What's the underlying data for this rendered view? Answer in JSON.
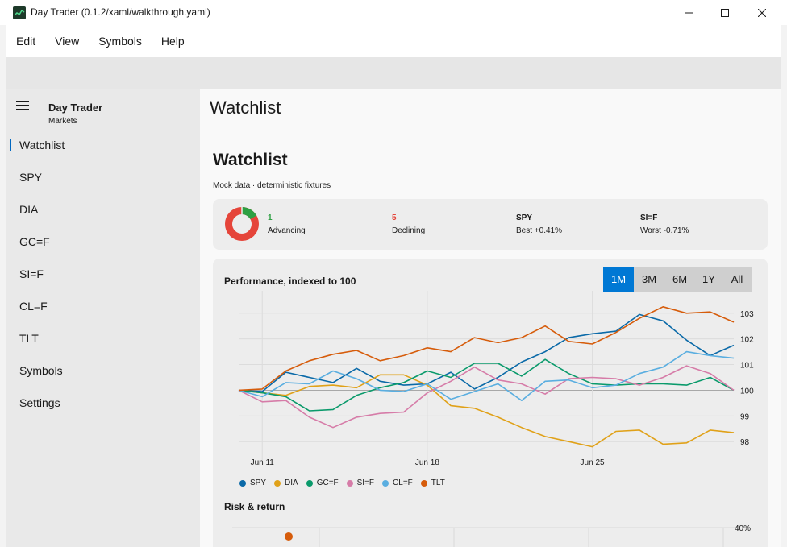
{
  "window": {
    "title": "Day Trader (0.1.2/xaml/walkthrough.yaml)"
  },
  "menu": [
    "Edit",
    "View",
    "Symbols",
    "Help"
  ],
  "sidebar": {
    "app_name": "Day Trader",
    "app_sub": "Markets",
    "items": [
      {
        "label": "Watchlist",
        "active": true
      },
      {
        "label": "SPY"
      },
      {
        "label": "DIA"
      },
      {
        "label": "GC=F"
      },
      {
        "label": "SI=F"
      },
      {
        "label": "CL=F"
      },
      {
        "label": "TLT"
      },
      {
        "label": "Symbols"
      },
      {
        "label": "Settings"
      }
    ]
  },
  "main": {
    "header": "Watchlist",
    "title": "Watchlist",
    "subtitle": "Mock data · deterministic fixtures",
    "stats": {
      "advancing": {
        "value": "1",
        "label": "Advancing",
        "color": "#2ea043"
      },
      "declining": {
        "value": "5",
        "label": "Declining",
        "color": "#e5453a"
      },
      "best": {
        "value": "SPY",
        "label": "Best +0.41%"
      },
      "worst": {
        "value": "SI=F",
        "label": "Worst -0.71%"
      }
    },
    "performance": {
      "title": "Performance, indexed to 100",
      "ranges": [
        "1M",
        "3M",
        "6M",
        "1Y",
        "All"
      ],
      "active_range": "1M"
    },
    "risk_return": {
      "title": "Risk & return",
      "y_label": "40%"
    }
  },
  "chart_data": {
    "type": "line",
    "title": "Performance, indexed to 100",
    "x_ticks": [
      "Jun 11",
      "Jun 18",
      "Jun 25"
    ],
    "y_ticks": [
      98,
      99,
      100,
      101,
      102,
      103
    ],
    "ylim": [
      97.6,
      103.4
    ],
    "x_count": 22,
    "series": [
      {
        "name": "SPY",
        "color": "#0b6aa8",
        "values": [
          100,
          99.95,
          100.7,
          100.5,
          100.3,
          100.85,
          100.35,
          100.2,
          100.25,
          100.7,
          100.05,
          100.5,
          101.1,
          101.5,
          102.05,
          102.2,
          102.3,
          102.95,
          102.7,
          101.95,
          101.35,
          101.75
        ]
      },
      {
        "name": "DIA",
        "color": "#e0a118",
        "values": [
          100,
          99.9,
          99.8,
          100.15,
          100.2,
          100.1,
          100.6,
          100.6,
          100.2,
          99.4,
          99.3,
          98.95,
          98.55,
          98.2,
          98.0,
          97.8,
          98.4,
          98.45,
          97.9,
          97.95,
          98.45,
          98.35
        ]
      },
      {
        "name": "GC=F",
        "color": "#0a9a6b",
        "values": [
          100,
          99.9,
          99.75,
          99.2,
          99.25,
          99.8,
          100.1,
          100.3,
          100.75,
          100.5,
          101.05,
          101.05,
          100.55,
          101.2,
          100.65,
          100.25,
          100.2,
          100.25,
          100.25,
          100.2,
          100.5,
          100.0
        ]
      },
      {
        "name": "SI=F",
        "color": "#d67ca8",
        "values": [
          100,
          99.55,
          99.6,
          98.95,
          98.55,
          98.95,
          99.1,
          99.15,
          99.9,
          100.35,
          100.9,
          100.4,
          100.25,
          99.85,
          100.45,
          100.5,
          100.45,
          100.2,
          100.5,
          100.95,
          100.65,
          100.0
        ]
      },
      {
        "name": "CL=F",
        "color": "#5aaee0",
        "values": [
          100,
          99.75,
          100.3,
          100.25,
          100.75,
          100.45,
          100.0,
          99.95,
          100.25,
          99.65,
          99.95,
          100.25,
          99.6,
          100.35,
          100.4,
          100.1,
          100.2,
          100.65,
          100.9,
          101.5,
          101.35,
          101.25
        ]
      },
      {
        "name": "TLT",
        "color": "#d65c0b",
        "values": [
          100,
          100.05,
          100.75,
          101.15,
          101.4,
          101.55,
          101.15,
          101.35,
          101.65,
          101.5,
          102.05,
          101.85,
          102.05,
          102.5,
          101.9,
          101.8,
          102.25,
          102.8,
          103.25,
          103.0,
          103.05,
          102.65
        ]
      }
    ]
  }
}
